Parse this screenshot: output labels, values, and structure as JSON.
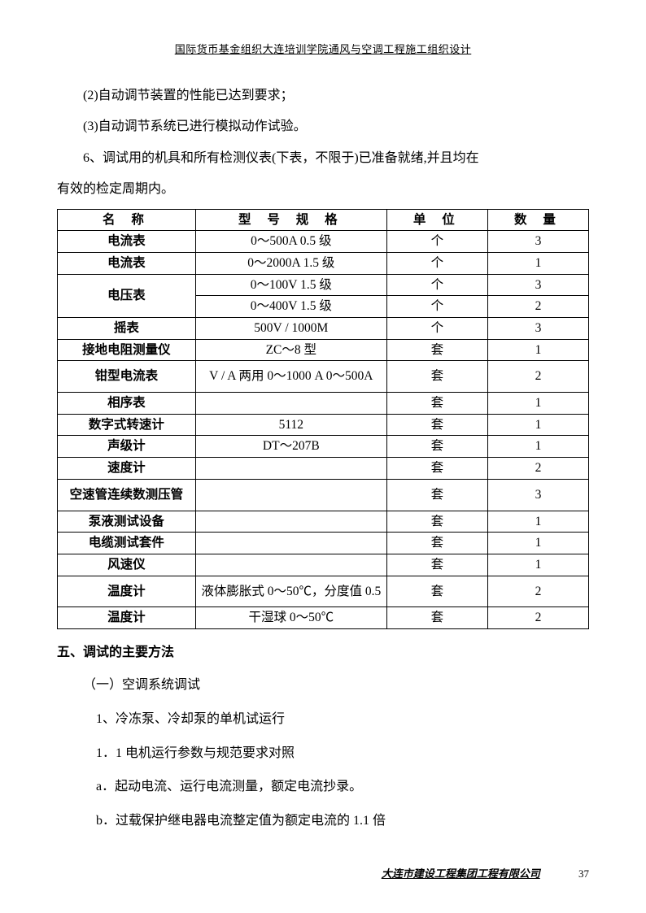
{
  "header": {
    "title": "国际货币基金组织大连培训学院通风与空调工程施工组织设计"
  },
  "paragraphs": {
    "p1": "(2)自动调节装置的性能已达到要求；",
    "p2": "(3)自动调节系统已进行模拟动作试验。",
    "p3": "6、调试用的机具和所有检测仪表(下表，不限于)已准备就绪,并且均在",
    "p4": "有效的检定周期内。"
  },
  "table": {
    "headers": {
      "name": "名 称",
      "spec": "型 号 规 格",
      "unit": "单 位",
      "qty": "数 量"
    },
    "rows": [
      {
        "name": "电流表",
        "spec": "0～500A   0.5 级",
        "unit": "个",
        "qty": "3"
      },
      {
        "name": "电流表",
        "spec": "0～2000A  1.5 级",
        "unit": "个",
        "qty": "1"
      },
      {
        "name": "电压表",
        "spec_a": "0～100V   1.5 级",
        "unit_a": "个",
        "qty_a": "3",
        "spec_b": "0～400V   1.5 级",
        "unit_b": "个",
        "qty_b": "2",
        "rowspan": 2
      },
      {
        "name": "摇表",
        "spec": "500V /    1000M",
        "unit": "个",
        "qty": "3"
      },
      {
        "name": "接地电阻测量仪",
        "spec": "ZC～8 型",
        "unit": "套",
        "qty": "1"
      },
      {
        "name": "钳型电流表",
        "spec": "V / A 两用 0～1000 A 0～500A",
        "unit": "套",
        "qty": "2",
        "tall": true
      },
      {
        "name": "相序表",
        "spec": "",
        "unit": "套",
        "qty": "1"
      },
      {
        "name": "数字式转速计",
        "spec": "5112",
        "unit": "套",
        "qty": "1"
      },
      {
        "name": "声级计",
        "spec": "DT～207B",
        "unit": "套",
        "qty": "1"
      },
      {
        "name": "速度计",
        "spec": "",
        "unit": "套",
        "qty": "2"
      },
      {
        "name": "空速管连续数测压管",
        "spec": "",
        "unit": "套",
        "qty": "3",
        "tall": true
      },
      {
        "name": "泵液测试设备",
        "spec": "",
        "unit": "套",
        "qty": "1"
      },
      {
        "name": "电缆测试套件",
        "spec": "",
        "unit": "套",
        "qty": "1"
      },
      {
        "name": "风速仪",
        "spec": "",
        "unit": "套",
        "qty": "1"
      },
      {
        "name": "温度计",
        "spec": "液体膨胀式 0～50℃，分度值 0.5",
        "unit": "套",
        "qty": "2",
        "tall": true
      },
      {
        "name": "温度计",
        "spec": "干湿球 0～50℃",
        "unit": "套",
        "qty": "2"
      }
    ]
  },
  "section5": {
    "heading": "五、调试的主要方法",
    "i1": "（一）空调系统调试",
    "i2": "1、冷冻泵、冷却泵的单机试运行",
    "i3": "1．1 电机运行参数与规范要求对照",
    "i4": "a．起动电流、运行电流测量，额定电流抄录。",
    "i5": "b．过载保护继电器电流整定值为额定电流的 1.1 倍"
  },
  "footer": {
    "company": "大连市建设工程集团工程有限公司",
    "page": "37"
  }
}
